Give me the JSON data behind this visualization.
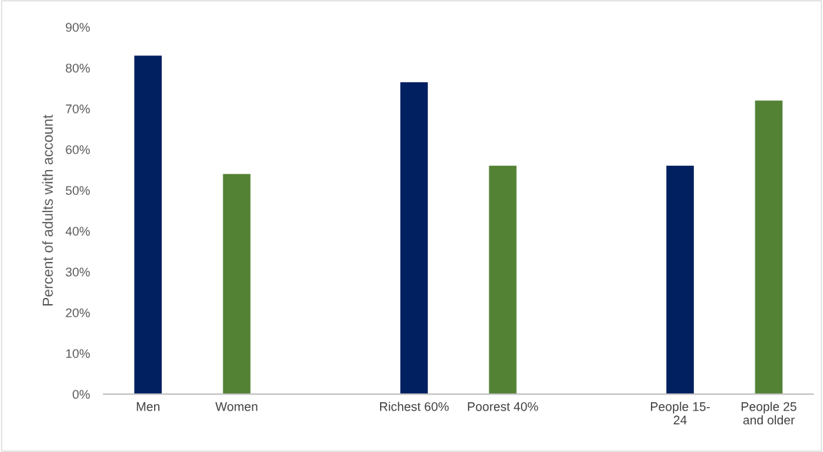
{
  "chart_data": {
    "type": "bar",
    "ylabel": "Percent of adults with account",
    "categories": [
      "Men",
      "Women",
      null,
      "Richest 60%",
      "Poorest 40%",
      null,
      "People 15-\n24",
      "People 25\nand older"
    ],
    "values": [
      83,
      54,
      null,
      76.5,
      56,
      null,
      56,
      72
    ],
    "colors": [
      "#002060",
      "#548235",
      null,
      "#002060",
      "#548235",
      null,
      "#002060",
      "#548235"
    ],
    "ylim": [
      0,
      90
    ],
    "yticks": [
      {
        "value": 0,
        "label": "0%"
      },
      {
        "value": 10,
        "label": "10%"
      },
      {
        "value": 20,
        "label": "20%"
      },
      {
        "value": 30,
        "label": "30%"
      },
      {
        "value": 40,
        "label": "40%"
      },
      {
        "value": 50,
        "label": "50%"
      },
      {
        "value": 60,
        "label": "60%"
      },
      {
        "value": 70,
        "label": "70%"
      },
      {
        "value": 80,
        "label": "80%"
      },
      {
        "value": 90,
        "label": "90%"
      }
    ],
    "grid": false
  }
}
